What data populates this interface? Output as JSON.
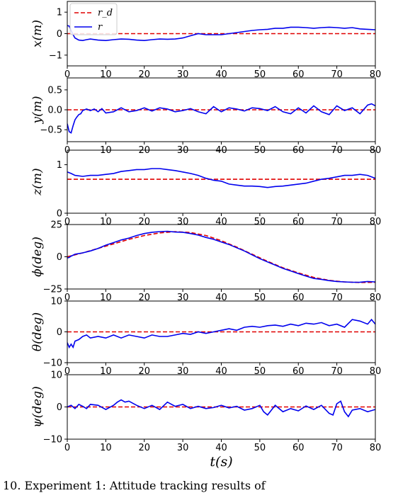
{
  "caption": "10. Experiment 1: Attitude tracking results of",
  "legend": {
    "reference": "r_d",
    "actual": "r"
  },
  "colors": {
    "reference": "#e00000",
    "actual": "#0000ee"
  },
  "chart_data": [
    {
      "type": "line",
      "name": "x",
      "ylabel": "x(m)",
      "xlim": [
        0,
        80
      ],
      "ylim": [
        -1.5,
        1.5
      ],
      "yticks": [
        -1,
        0,
        1
      ],
      "yticklabels": [
        "−1",
        "0",
        "1"
      ],
      "xticks": [
        0,
        10,
        20,
        30,
        40,
        50,
        60,
        70,
        80
      ],
      "legend": true,
      "series": [
        {
          "role": "reference",
          "x": [
            0,
            80
          ],
          "y": [
            0,
            0
          ]
        },
        {
          "role": "actual",
          "x": [
            0,
            0.5,
            1,
            1.5,
            2,
            3,
            4,
            5,
            6,
            8,
            10,
            12,
            14,
            16,
            18,
            20,
            22,
            24,
            26,
            28,
            30,
            32,
            34,
            36,
            38,
            40,
            42,
            44,
            46,
            48,
            50,
            52,
            54,
            56,
            58,
            60,
            62,
            64,
            66,
            68,
            70,
            72,
            74,
            76,
            78,
            80
          ],
          "y": [
            0.38,
            0.35,
            0.15,
            -0.05,
            -0.2,
            -0.3,
            -0.32,
            -0.28,
            -0.25,
            -0.3,
            -0.32,
            -0.28,
            -0.25,
            -0.26,
            -0.3,
            -0.32,
            -0.28,
            -0.25,
            -0.26,
            -0.25,
            -0.2,
            -0.1,
            0,
            -0.05,
            -0.05,
            -0.05,
            0,
            0.05,
            0.1,
            0.15,
            0.18,
            0.2,
            0.25,
            0.25,
            0.3,
            0.3,
            0.28,
            0.25,
            0.28,
            0.3,
            0.28,
            0.25,
            0.28,
            0.22,
            0.2,
            0.18
          ]
        }
      ]
    },
    {
      "type": "line",
      "name": "y",
      "ylabel": "y(m)",
      "xlim": [
        0,
        80
      ],
      "ylim": [
        -0.8,
        0.8
      ],
      "yticks": [
        -0.5,
        0,
        0.5
      ],
      "yticklabels": [
        "−0.5",
        "0.0",
        "0.5"
      ],
      "xticks": [
        0,
        10,
        20,
        30,
        40,
        50,
        60,
        70,
        80
      ],
      "legend": false,
      "series": [
        {
          "role": "reference",
          "x": [
            0,
            80
          ],
          "y": [
            0,
            0
          ]
        },
        {
          "role": "actual",
          "x": [
            0,
            0.5,
            1,
            1.5,
            2,
            2.5,
            3,
            3.5,
            4,
            5,
            6,
            7,
            8,
            9,
            10,
            12,
            14,
            16,
            18,
            20,
            22,
            24,
            26,
            28,
            30,
            32,
            34,
            36,
            38,
            40,
            42,
            44,
            46,
            48,
            50,
            52,
            54,
            56,
            58,
            60,
            62,
            64,
            66,
            68,
            70,
            72,
            74,
            76,
            78,
            79,
            80
          ],
          "y": [
            -0.35,
            -0.55,
            -0.58,
            -0.4,
            -0.25,
            -0.18,
            -0.12,
            -0.1,
            -0.02,
            0.02,
            -0.02,
            0.02,
            -0.05,
            0.03,
            -0.08,
            -0.05,
            0.05,
            -0.05,
            -0.02,
            0.05,
            -0.03,
            0.05,
            0.02,
            -0.05,
            -0.02,
            0.03,
            -0.05,
            -0.1,
            0.08,
            -0.05,
            0.05,
            0.02,
            -0.03,
            0.05,
            0.03,
            -0.02,
            0.08,
            -0.05,
            -0.1,
            0.05,
            -0.08,
            0.1,
            -0.05,
            -0.12,
            0.1,
            -0.02,
            0.05,
            -0.1,
            0.12,
            0.15,
            0.1
          ]
        }
      ]
    },
    {
      "type": "line",
      "name": "z",
      "ylabel": "z(m)",
      "xlim": [
        0,
        80
      ],
      "ylim": [
        0,
        1.3
      ],
      "yticks": [
        0,
        1
      ],
      "yticklabels": [
        "0",
        "1"
      ],
      "xticks": [
        0,
        10,
        20,
        30,
        40,
        50,
        60,
        70,
        80
      ],
      "legend": false,
      "series": [
        {
          "role": "reference",
          "x": [
            0,
            80
          ],
          "y": [
            0.7,
            0.7
          ]
        },
        {
          "role": "actual",
          "x": [
            0,
            1,
            2,
            4,
            6,
            8,
            10,
            12,
            14,
            16,
            18,
            20,
            22,
            24,
            26,
            28,
            30,
            32,
            34,
            36,
            38,
            40,
            42,
            44,
            46,
            48,
            50,
            52,
            54,
            56,
            58,
            60,
            62,
            64,
            66,
            68,
            70,
            72,
            74,
            76,
            78,
            80
          ],
          "y": [
            0.85,
            0.82,
            0.78,
            0.76,
            0.78,
            0.78,
            0.8,
            0.82,
            0.86,
            0.88,
            0.9,
            0.9,
            0.92,
            0.92,
            0.9,
            0.88,
            0.85,
            0.82,
            0.78,
            0.72,
            0.68,
            0.66,
            0.6,
            0.58,
            0.56,
            0.56,
            0.55,
            0.53,
            0.55,
            0.56,
            0.58,
            0.6,
            0.62,
            0.66,
            0.7,
            0.72,
            0.75,
            0.78,
            0.78,
            0.8,
            0.78,
            0.72
          ]
        }
      ]
    },
    {
      "type": "line",
      "name": "phi",
      "ylabel": "ϕ(deg)",
      "xlim": [
        0,
        80
      ],
      "ylim": [
        -25,
        25
      ],
      "yticks": [
        -25,
        0,
        25
      ],
      "yticklabels": [
        "−25",
        "0",
        "25"
      ],
      "xticks": [
        0,
        10,
        20,
        30,
        40,
        50,
        60,
        70,
        80
      ],
      "legend": false,
      "series": [
        {
          "role": "reference",
          "x": [
            0,
            4,
            8,
            12,
            16,
            20,
            24,
            28,
            32,
            36,
            40,
            44,
            48,
            52,
            56,
            60,
            64,
            68,
            72,
            76,
            80
          ],
          "y": [
            0,
            3,
            6.5,
            10,
            13.5,
            16.5,
            18.5,
            19.5,
            18.8,
            16.5,
            12.5,
            7.5,
            2,
            -3.5,
            -8.5,
            -12.5,
            -16,
            -18.3,
            -19.5,
            -20,
            -19.8
          ]
        },
        {
          "role": "actual",
          "x": [
            0,
            0.5,
            1,
            2,
            4,
            6,
            8,
            10,
            12,
            14,
            16,
            18,
            20,
            22,
            24,
            26,
            28,
            30,
            32,
            34,
            36,
            38,
            40,
            42,
            44,
            46,
            48,
            50,
            52,
            54,
            56,
            58,
            60,
            62,
            64,
            66,
            68,
            70,
            72,
            74,
            76,
            78,
            80
          ],
          "y": [
            -1,
            -0.5,
            0.5,
            2,
            3,
            4.5,
            6.5,
            9,
            11,
            13,
            14.5,
            16.5,
            18,
            19,
            19.5,
            19.8,
            19.2,
            19,
            18,
            16.8,
            15,
            13.5,
            11.5,
            9.5,
            7,
            4.5,
            1.5,
            -1.5,
            -4,
            -6.5,
            -9,
            -11,
            -13,
            -15,
            -16.8,
            -17.5,
            -18.5,
            -19.2,
            -19.5,
            -19.8,
            -19.7,
            -19.2,
            -19.5
          ]
        }
      ]
    },
    {
      "type": "line",
      "name": "theta",
      "ylabel": "θ(deg)",
      "xlim": [
        0,
        80
      ],
      "ylim": [
        -10,
        10
      ],
      "yticks": [
        -10,
        0,
        10
      ],
      "yticklabels": [
        "−10",
        "0",
        "10"
      ],
      "xticks": [
        0,
        10,
        20,
        30,
        40,
        50,
        60,
        70,
        80
      ],
      "legend": false,
      "series": [
        {
          "role": "reference",
          "x": [
            0,
            80
          ],
          "y": [
            0,
            0
          ]
        },
        {
          "role": "actual",
          "x": [
            0,
            0.5,
            1,
            1.5,
            2,
            3,
            4,
            5,
            6,
            8,
            10,
            12,
            14,
            16,
            18,
            20,
            22,
            24,
            26,
            28,
            30,
            32,
            34,
            36,
            38,
            40,
            42,
            44,
            46,
            48,
            50,
            52,
            54,
            56,
            58,
            60,
            62,
            64,
            66,
            68,
            70,
            72,
            74,
            76,
            78,
            79,
            80
          ],
          "y": [
            -3.5,
            -5,
            -4,
            -5,
            -3,
            -2.5,
            -1.5,
            -1,
            -2,
            -1.5,
            -2,
            -1,
            -2,
            -1,
            -1.5,
            -2,
            -1,
            -1.5,
            -1.5,
            -1,
            -0.5,
            -0.8,
            0,
            -0.5,
            0,
            0.5,
            1,
            0.5,
            1.5,
            1.8,
            1.5,
            2,
            2.2,
            1.8,
            2.5,
            2,
            2.8,
            2.5,
            3,
            2,
            2.5,
            1.5,
            4,
            3.5,
            2.5,
            4,
            2.5
          ]
        }
      ]
    },
    {
      "type": "line",
      "name": "psi",
      "ylabel": "ψ(deg)",
      "xlim": [
        0,
        80
      ],
      "ylim": [
        -10,
        10
      ],
      "yticks": [
        -10,
        0,
        10
      ],
      "yticklabels": [
        "−10",
        "0",
        "10"
      ],
      "xticks": [
        0,
        10,
        20,
        30,
        40,
        50,
        60,
        70,
        80
      ],
      "xticklabels": [
        "0",
        "10",
        "20",
        "30",
        "40",
        "50",
        "60",
        "70",
        "80"
      ],
      "xlabel": "t(s)",
      "legend": false,
      "series": [
        {
          "role": "reference",
          "x": [
            0,
            80
          ],
          "y": [
            0,
            0
          ]
        },
        {
          "role": "actual",
          "x": [
            0,
            1,
            2,
            3,
            4,
            5,
            6,
            8,
            10,
            12,
            13,
            14,
            15,
            16,
            18,
            20,
            22,
            24,
            26,
            28,
            30,
            32,
            34,
            36,
            38,
            40,
            42,
            44,
            46,
            48,
            50,
            51,
            52,
            53,
            54,
            56,
            58,
            60,
            62,
            64,
            66,
            68,
            69,
            70,
            71,
            72,
            73,
            74,
            76,
            78,
            80
          ],
          "y": [
            0,
            0.5,
            -0.5,
            0.8,
            0.2,
            -0.5,
            0.8,
            0.5,
            -0.8,
            0.5,
            1.5,
            2.2,
            1.5,
            1.8,
            0.5,
            -0.5,
            0.5,
            -0.8,
            1.5,
            0.2,
            0.8,
            -0.5,
            0.2,
            -0.5,
            -0.2,
            0.5,
            -0.3,
            0.2,
            -1,
            -0.5,
            0.5,
            -1.5,
            -2.5,
            -1,
            0.5,
            -1.5,
            -0.5,
            -1.2,
            0.3,
            -0.8,
            0.5,
            -2,
            -2.5,
            1,
            1.8,
            -1.5,
            -3,
            -1,
            -0.5,
            -1.5,
            -0.8
          ]
        }
      ]
    }
  ]
}
